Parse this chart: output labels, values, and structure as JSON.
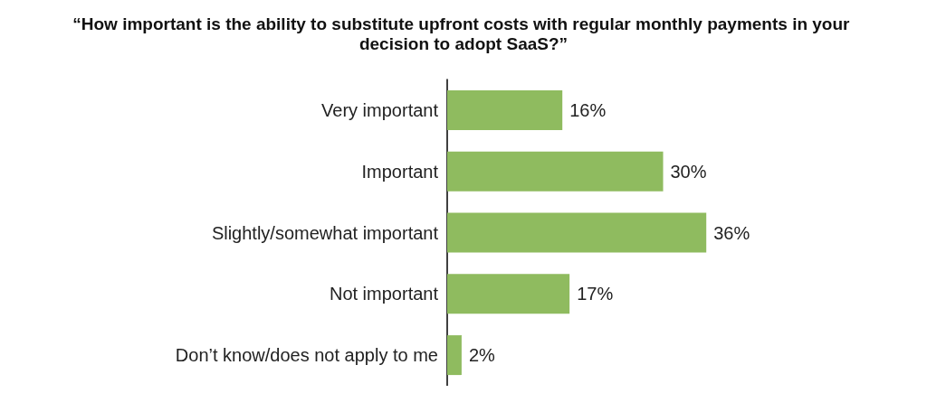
{
  "chart_data": {
    "type": "bar",
    "orientation": "horizontal",
    "title": "“How important is the ability to substitute upfront costs with regular monthly payments in your decision to adopt SaaS?”",
    "categories": [
      "Very important",
      "Important",
      "Slightly/somewhat important",
      "Not important",
      "Don’t know/does not apply to me"
    ],
    "values": [
      16,
      30,
      36,
      17,
      2
    ],
    "value_labels": [
      "16%",
      "30%",
      "36%",
      "17%",
      "2%"
    ],
    "color": "#8fbb5f"
  }
}
